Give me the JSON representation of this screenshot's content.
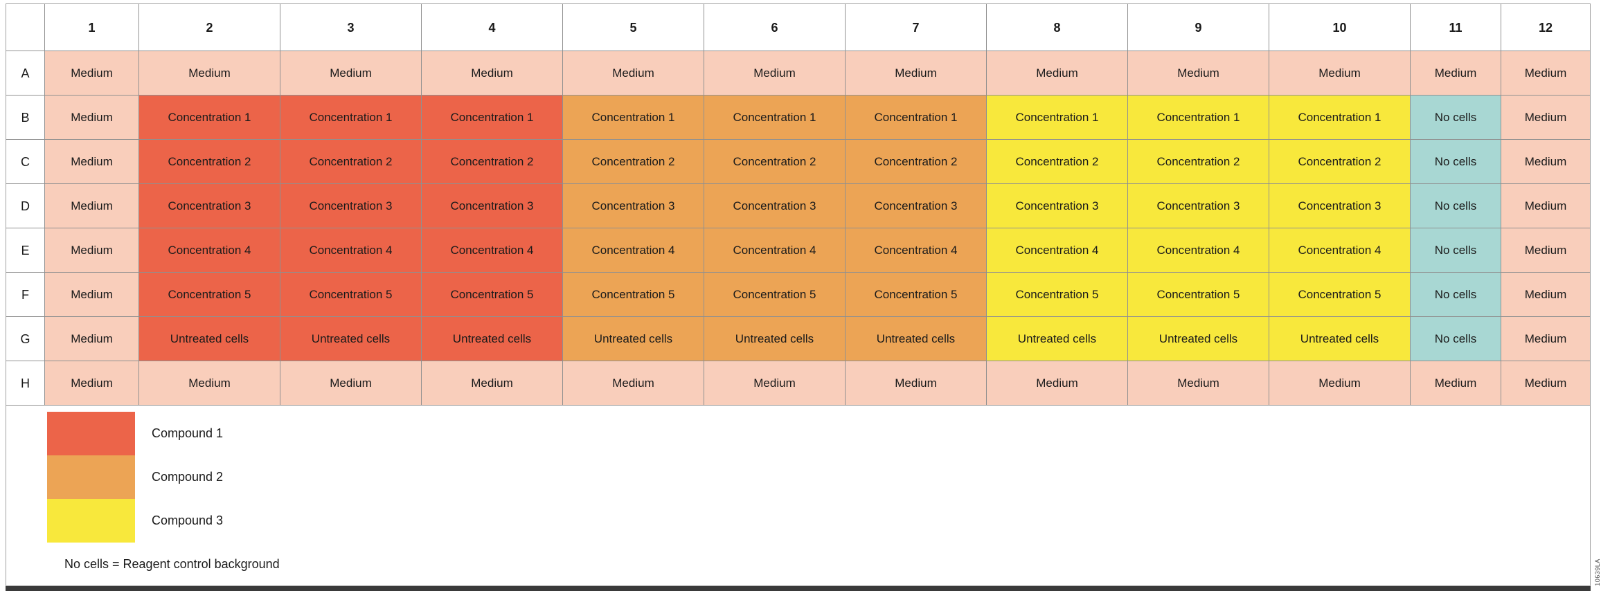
{
  "figure": {
    "id_vertical": "10639LA"
  },
  "colors": {
    "medium": "#F9CEBB",
    "compound1": "#EC6449",
    "compound2": "#ECA455",
    "compound3": "#F8E83C",
    "no_cells": "#A8D7D3",
    "grid_line": "#909090",
    "bottom_bar": "#3A3A3A"
  },
  "plate": {
    "column_headers": [
      "1",
      "2",
      "3",
      "4",
      "5",
      "6",
      "7",
      "8",
      "9",
      "10",
      "11",
      "12"
    ],
    "row_headers": [
      "A",
      "B",
      "C",
      "D",
      "E",
      "F",
      "G",
      "H"
    ],
    "rows": [
      {
        "label": "A",
        "cells": [
          {
            "text": "Medium",
            "fill": "medium"
          },
          {
            "text": "Medium",
            "fill": "medium"
          },
          {
            "text": "Medium",
            "fill": "medium"
          },
          {
            "text": "Medium",
            "fill": "medium"
          },
          {
            "text": "Medium",
            "fill": "medium"
          },
          {
            "text": "Medium",
            "fill": "medium"
          },
          {
            "text": "Medium",
            "fill": "medium"
          },
          {
            "text": "Medium",
            "fill": "medium"
          },
          {
            "text": "Medium",
            "fill": "medium"
          },
          {
            "text": "Medium",
            "fill": "medium"
          },
          {
            "text": "Medium",
            "fill": "medium"
          },
          {
            "text": "Medium",
            "fill": "medium"
          }
        ]
      },
      {
        "label": "B",
        "cells": [
          {
            "text": "Medium",
            "fill": "medium"
          },
          {
            "text": "Concentration 1",
            "fill": "compound1"
          },
          {
            "text": "Concentration 1",
            "fill": "compound1"
          },
          {
            "text": "Concentration 1",
            "fill": "compound1"
          },
          {
            "text": "Concentration 1",
            "fill": "compound2"
          },
          {
            "text": "Concentration 1",
            "fill": "compound2"
          },
          {
            "text": "Concentration 1",
            "fill": "compound2"
          },
          {
            "text": "Concentration 1",
            "fill": "compound3"
          },
          {
            "text": "Concentration 1",
            "fill": "compound3"
          },
          {
            "text": "Concentration 1",
            "fill": "compound3"
          },
          {
            "text": "No cells",
            "fill": "no_cells"
          },
          {
            "text": "Medium",
            "fill": "medium"
          }
        ]
      },
      {
        "label": "C",
        "cells": [
          {
            "text": "Medium",
            "fill": "medium"
          },
          {
            "text": "Concentration 2",
            "fill": "compound1"
          },
          {
            "text": "Concentration 2",
            "fill": "compound1"
          },
          {
            "text": "Concentration 2",
            "fill": "compound1"
          },
          {
            "text": "Concentration 2",
            "fill": "compound2"
          },
          {
            "text": "Concentration 2",
            "fill": "compound2"
          },
          {
            "text": "Concentration 2",
            "fill": "compound2"
          },
          {
            "text": "Concentration 2",
            "fill": "compound3"
          },
          {
            "text": "Concentration 2",
            "fill": "compound3"
          },
          {
            "text": "Concentration 2",
            "fill": "compound3"
          },
          {
            "text": "No cells",
            "fill": "no_cells"
          },
          {
            "text": "Medium",
            "fill": "medium"
          }
        ]
      },
      {
        "label": "D",
        "cells": [
          {
            "text": "Medium",
            "fill": "medium"
          },
          {
            "text": "Concentration 3",
            "fill": "compound1"
          },
          {
            "text": "Concentration 3",
            "fill": "compound1"
          },
          {
            "text": "Concentration 3",
            "fill": "compound1"
          },
          {
            "text": "Concentration 3",
            "fill": "compound2"
          },
          {
            "text": "Concentration 3",
            "fill": "compound2"
          },
          {
            "text": "Concentration 3",
            "fill": "compound2"
          },
          {
            "text": "Concentration 3",
            "fill": "compound3"
          },
          {
            "text": "Concentration 3",
            "fill": "compound3"
          },
          {
            "text": "Concentration 3",
            "fill": "compound3"
          },
          {
            "text": "No cells",
            "fill": "no_cells"
          },
          {
            "text": "Medium",
            "fill": "medium"
          }
        ]
      },
      {
        "label": "E",
        "cells": [
          {
            "text": "Medium",
            "fill": "medium"
          },
          {
            "text": "Concentration 4",
            "fill": "compound1"
          },
          {
            "text": "Concentration 4",
            "fill": "compound1"
          },
          {
            "text": "Concentration 4",
            "fill": "compound1"
          },
          {
            "text": "Concentration 4",
            "fill": "compound2"
          },
          {
            "text": "Concentration 4",
            "fill": "compound2"
          },
          {
            "text": "Concentration 4",
            "fill": "compound2"
          },
          {
            "text": "Concentration 4",
            "fill": "compound3"
          },
          {
            "text": "Concentration 4",
            "fill": "compound3"
          },
          {
            "text": "Concentration 4",
            "fill": "compound3"
          },
          {
            "text": "No cells",
            "fill": "no_cells"
          },
          {
            "text": "Medium",
            "fill": "medium"
          }
        ]
      },
      {
        "label": "F",
        "cells": [
          {
            "text": "Medium",
            "fill": "medium"
          },
          {
            "text": "Concentration 5",
            "fill": "compound1"
          },
          {
            "text": "Concentration 5",
            "fill": "compound1"
          },
          {
            "text": "Concentration 5",
            "fill": "compound1"
          },
          {
            "text": "Concentration 5",
            "fill": "compound2"
          },
          {
            "text": "Concentration 5",
            "fill": "compound2"
          },
          {
            "text": "Concentration 5",
            "fill": "compound2"
          },
          {
            "text": "Concentration 5",
            "fill": "compound3"
          },
          {
            "text": "Concentration 5",
            "fill": "compound3"
          },
          {
            "text": "Concentration 5",
            "fill": "compound3"
          },
          {
            "text": "No cells",
            "fill": "no_cells"
          },
          {
            "text": "Medium",
            "fill": "medium"
          }
        ]
      },
      {
        "label": "G",
        "cells": [
          {
            "text": "Medium",
            "fill": "medium"
          },
          {
            "text": "Untreated cells",
            "fill": "compound1"
          },
          {
            "text": "Untreated cells",
            "fill": "compound1"
          },
          {
            "text": "Untreated cells",
            "fill": "compound1"
          },
          {
            "text": "Untreated cells",
            "fill": "compound2"
          },
          {
            "text": "Untreated cells",
            "fill": "compound2"
          },
          {
            "text": "Untreated cells",
            "fill": "compound2"
          },
          {
            "text": "Untreated cells",
            "fill": "compound3"
          },
          {
            "text": "Untreated cells",
            "fill": "compound3"
          },
          {
            "text": "Untreated cells",
            "fill": "compound3"
          },
          {
            "text": "No cells",
            "fill": "no_cells"
          },
          {
            "text": "Medium",
            "fill": "medium"
          }
        ]
      },
      {
        "label": "H",
        "cells": [
          {
            "text": "Medium",
            "fill": "medium"
          },
          {
            "text": "Medium",
            "fill": "medium"
          },
          {
            "text": "Medium",
            "fill": "medium"
          },
          {
            "text": "Medium",
            "fill": "medium"
          },
          {
            "text": "Medium",
            "fill": "medium"
          },
          {
            "text": "Medium",
            "fill": "medium"
          },
          {
            "text": "Medium",
            "fill": "medium"
          },
          {
            "text": "Medium",
            "fill": "medium"
          },
          {
            "text": "Medium",
            "fill": "medium"
          },
          {
            "text": "Medium",
            "fill": "medium"
          },
          {
            "text": "Medium",
            "fill": "medium"
          },
          {
            "text": "Medium",
            "fill": "medium"
          }
        ]
      }
    ]
  },
  "legend": {
    "items": [
      {
        "label": "Compound 1",
        "fill": "compound1"
      },
      {
        "label": "Compound 2",
        "fill": "compound2"
      },
      {
        "label": "Compound 3",
        "fill": "compound3"
      }
    ],
    "note": "No cells = Reagent control background"
  }
}
